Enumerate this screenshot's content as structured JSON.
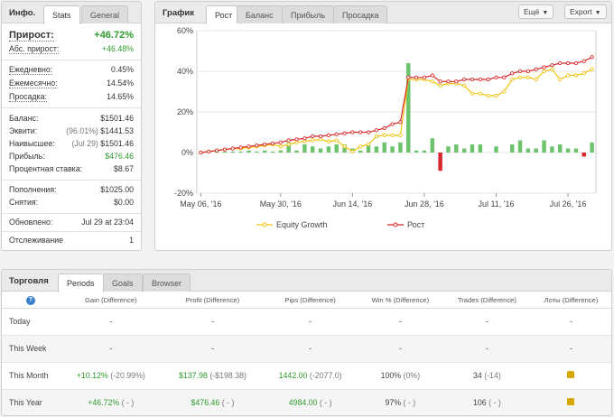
{
  "info": {
    "title": "Инфо.",
    "tabs": [
      "Stats",
      "General"
    ],
    "rows": [
      {
        "label": "Прирост:",
        "value": "+46.72%"
      },
      {
        "label": "Абс. прирост:",
        "value": "+46.48%"
      },
      {
        "label": "Ежедневно:",
        "value": "0.45%"
      },
      {
        "label": "Ежемесячно:",
        "value": "14.54%"
      },
      {
        "label": "Просадка:",
        "value": "14.65%"
      },
      {
        "label": "Баланс:",
        "value": "$1501.46"
      },
      {
        "label": "Эквити:",
        "note": "(96.01%)",
        "value": "$1441.53"
      },
      {
        "label": "Наивысшее:",
        "note": "(Jul 29)",
        "value": "$1501.46"
      },
      {
        "label": "Прибыль:",
        "value": "$476.46"
      },
      {
        "label": "Процентная ставка:",
        "value": "$8.67"
      },
      {
        "label": "Пополнения:",
        "value": "$1025.00"
      },
      {
        "label": "Снятия:",
        "value": "$0.00"
      },
      {
        "label": "Обновлено:",
        "value": "Jul 29 at 23:04"
      },
      {
        "label": "Отслеживание",
        "value": "1"
      }
    ]
  },
  "chart_panel": {
    "title": "График",
    "tabs": [
      "Рост",
      "Баланс",
      "Прибыль",
      "Просадка"
    ],
    "menu_label": "Ещё",
    "export_label": "Export"
  },
  "chart_data": {
    "type": "line",
    "y_ticks": [
      "60%",
      "40%",
      "20%",
      "0%",
      "-20%"
    ],
    "ylim": [
      -20,
      60
    ],
    "x_ticks": [
      "May 06, '16",
      "May 30, '16",
      "Jun 14, '16",
      "Jun 28, '16",
      "Jul 11, '16",
      "Jul 26, '16"
    ],
    "x_tick_positions": [
      0,
      10,
      19,
      28,
      37,
      46
    ],
    "x_count": 50,
    "series": [
      {
        "name": "Equity Growth",
        "color": "#f1c40f",
        "values": [
          0,
          0.5,
          1,
          1.5,
          2,
          2,
          2.5,
          3,
          3.5,
          4,
          3,
          4,
          5,
          5.5,
          6,
          6.5,
          5.5,
          6,
          3,
          0.5,
          3,
          4,
          8,
          8.5,
          8.5,
          8.5,
          36,
          36,
          36,
          35,
          33,
          34,
          34,
          33,
          29,
          29,
          28,
          28,
          30,
          36,
          37,
          37,
          36,
          40,
          41,
          36,
          38,
          38,
          39,
          41
        ]
      },
      {
        "name": "Рост",
        "color": "#d9262a",
        "values": [
          0,
          0.5,
          1,
          1.5,
          2,
          2.5,
          3,
          3.5,
          4,
          4.5,
          5,
          6,
          6.5,
          7,
          8,
          8,
          8.5,
          9,
          9.5,
          10,
          10,
          10,
          11,
          12,
          14,
          15,
          37,
          37,
          37,
          38,
          35,
          35,
          35,
          36,
          36,
          36,
          36,
          37,
          37,
          39,
          40,
          40,
          41,
          42,
          43,
          44,
          44,
          44,
          45,
          47
        ]
      }
    ],
    "bars": [
      0,
      0.5,
      1,
      0.5,
      0.5,
      0.5,
      1,
      0.5,
      1,
      0.5,
      1,
      5,
      1,
      4,
      3,
      2,
      3,
      4,
      4,
      2,
      1,
      4,
      3,
      5,
      3,
      5,
      44,
      1,
      1,
      7,
      -9,
      3,
      4,
      2,
      4,
      4,
      0,
      3,
      0,
      4,
      6,
      2,
      2,
      6,
      3,
      4,
      2,
      2,
      -2,
      5
    ],
    "bar_color_pos": "#6cc36c",
    "bar_color_neg": "#d9262a"
  },
  "trade": {
    "title": "Торговля",
    "tabs": [
      "Periods",
      "Goals",
      "Browser"
    ],
    "columns": [
      "Gain (Difference)",
      "Profit (Difference)",
      "Pips (Difference)",
      "Win % (Difference)",
      "Trades (Difference)",
      "Лоты (Difference)"
    ],
    "rows": [
      {
        "period": "Today",
        "gain": "-",
        "gain_diff": "",
        "profit": "-",
        "profit_diff": "",
        "pips": "-",
        "pips_diff": "",
        "win": "-",
        "win_diff": "",
        "trades": "-",
        "trades_diff": "",
        "lots": "-"
      },
      {
        "period": "This Week",
        "gain": "-",
        "gain_diff": "",
        "profit": "-",
        "profit_diff": "",
        "pips": "-",
        "pips_diff": "",
        "win": "-",
        "win_diff": "",
        "trades": "-",
        "trades_diff": "",
        "lots": "-"
      },
      {
        "period": "This Month",
        "gain": "+10.12%",
        "gain_diff": "(-20.99%)",
        "profit": "$137.98",
        "profit_diff": "(-$198.38)",
        "pips": "1442.00",
        "pips_diff": "(-2077.0)",
        "win": "100%",
        "win_diff": "(0%)",
        "trades": "34",
        "trades_diff": "(-14)",
        "lots": "lot-icon"
      },
      {
        "period": "This Year",
        "gain": "+46.72%",
        "gain_diff": "( - )",
        "profit": "$476.46",
        "profit_diff": "( - )",
        "pips": "4984.00",
        "pips_diff": "( - )",
        "win": "97%",
        "win_diff": "( - )",
        "trades": "106",
        "trades_diff": "( - )",
        "lots": "lot-icon"
      }
    ]
  }
}
